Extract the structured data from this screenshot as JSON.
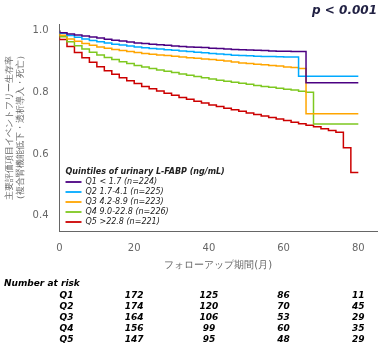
{
  "chart_data": {
    "type": "line",
    "line_style": "step",
    "title": "p < 0.001",
    "xlabel": "フォローアップ期間(月)",
    "ylabel": "主要評価項目イベントフリー生存率\n（複合腎機能低下・透析導入・死亡）",
    "legend_title": "Quintiles of urinary L-FABP (ng/mL)",
    "legend": "lower left",
    "grid": false,
    "xlim": [
      0,
      85
    ],
    "xticks": [
      0,
      20,
      40,
      60,
      80
    ],
    "ylim": [
      0.35,
      1.02
    ],
    "yticks": [
      0.4,
      0.6,
      0.8,
      {
        "value": 1.0,
        "label": "1.0"
      }
    ],
    "x": [
      0,
      2,
      4,
      6,
      8,
      10,
      12,
      14,
      16,
      18,
      20,
      22,
      24,
      26,
      28,
      30,
      32,
      34,
      36,
      38,
      40,
      42,
      44,
      46,
      48,
      50,
      52,
      54,
      56,
      58,
      60,
      62,
      64,
      66,
      68,
      70,
      72,
      74,
      76,
      78,
      80
    ],
    "series": [
      {
        "name": "Q1 < 1.7 (n=224)",
        "color": "#4b0082",
        "values": [
          1.0,
          0.993,
          0.989,
          0.986,
          0.982,
          0.979,
          0.976,
          0.972,
          0.969,
          0.966,
          0.963,
          0.96,
          0.958,
          0.956,
          0.954,
          0.952,
          0.95,
          0.948,
          0.947,
          0.946,
          0.945,
          0.943,
          0.942,
          0.94,
          0.939,
          0.938,
          0.937,
          0.936,
          0.935,
          0.934,
          0.933,
          0.933,
          0.932,
          0.932,
          0.831,
          0.831,
          0.831,
          0.831,
          0.831,
          0.831,
          0.831
        ]
      },
      {
        "name": "Q2 1.7-4.1 (n=225)",
        "color": "#00aaff",
        "values": [
          1.0,
          0.991,
          0.984,
          0.978,
          0.973,
          0.968,
          0.964,
          0.96,
          0.956,
          0.953,
          0.95,
          0.947,
          0.944,
          0.942,
          0.94,
          0.938,
          0.936,
          0.934,
          0.932,
          0.93,
          0.928,
          0.926,
          0.924,
          0.922,
          0.92,
          0.919,
          0.918,
          0.917,
          0.916,
          0.916,
          0.915,
          0.914,
          0.914,
          0.852,
          0.852,
          0.852,
          0.852,
          0.852,
          0.852,
          0.852,
          0.852
        ]
      },
      {
        "name": "Q3 4.2-8.9 (n=223)",
        "color": "#ffa500",
        "values": [
          1.0,
          0.985,
          0.973,
          0.965,
          0.958,
          0.952,
          0.947,
          0.943,
          0.939,
          0.935,
          0.932,
          0.929,
          0.926,
          0.923,
          0.921,
          0.919,
          0.917,
          0.914,
          0.912,
          0.91,
          0.908,
          0.906,
          0.904,
          0.901,
          0.898,
          0.895,
          0.893,
          0.891,
          0.889,
          0.887,
          0.885,
          0.882,
          0.88,
          0.877,
          0.73,
          0.73,
          0.73,
          0.73,
          0.73,
          0.73,
          0.73
        ]
      },
      {
        "name": "Q4 9.0-22.8 (n=226)",
        "color": "#7ec820",
        "values": [
          1.0,
          0.98,
          0.964,
          0.951,
          0.94,
          0.93,
          0.921,
          0.913,
          0.906,
          0.899,
          0.893,
          0.887,
          0.882,
          0.877,
          0.872,
          0.868,
          0.864,
          0.859,
          0.855,
          0.851,
          0.847,
          0.843,
          0.839,
          0.836,
          0.832,
          0.829,
          0.826,
          0.822,
          0.819,
          0.816,
          0.813,
          0.81,
          0.807,
          0.803,
          0.8,
          0.697,
          0.697,
          0.697,
          0.697,
          0.697,
          0.697
        ]
      },
      {
        "name": "Q5 >22.8 (n=221)",
        "color": "#cc0000",
        "values": [
          1.0,
          0.971,
          0.948,
          0.929,
          0.912,
          0.897,
          0.883,
          0.87,
          0.858,
          0.847,
          0.837,
          0.828,
          0.819,
          0.811,
          0.804,
          0.797,
          0.79,
          0.783,
          0.777,
          0.771,
          0.765,
          0.759,
          0.754,
          0.748,
          0.743,
          0.738,
          0.733,
          0.728,
          0.723,
          0.718,
          0.713,
          0.708,
          0.703,
          0.698,
          0.693,
          0.688,
          0.682,
          0.676,
          0.67,
          0.62,
          0.54
        ]
      }
    ],
    "number_at_risk": {
      "title": "Number at risk",
      "times": [
        20,
        40,
        60,
        80
      ],
      "rows": [
        {
          "name": "Q1",
          "values": [
            172,
            125,
            86,
            11
          ]
        },
        {
          "name": "Q2",
          "values": [
            174,
            120,
            70,
            45
          ]
        },
        {
          "name": "Q3",
          "values": [
            164,
            106,
            53,
            29
          ]
        },
        {
          "name": "Q4",
          "values": [
            156,
            99,
            60,
            35
          ]
        },
        {
          "name": "Q5",
          "values": [
            147,
            95,
            48,
            29
          ]
        }
      ]
    }
  }
}
